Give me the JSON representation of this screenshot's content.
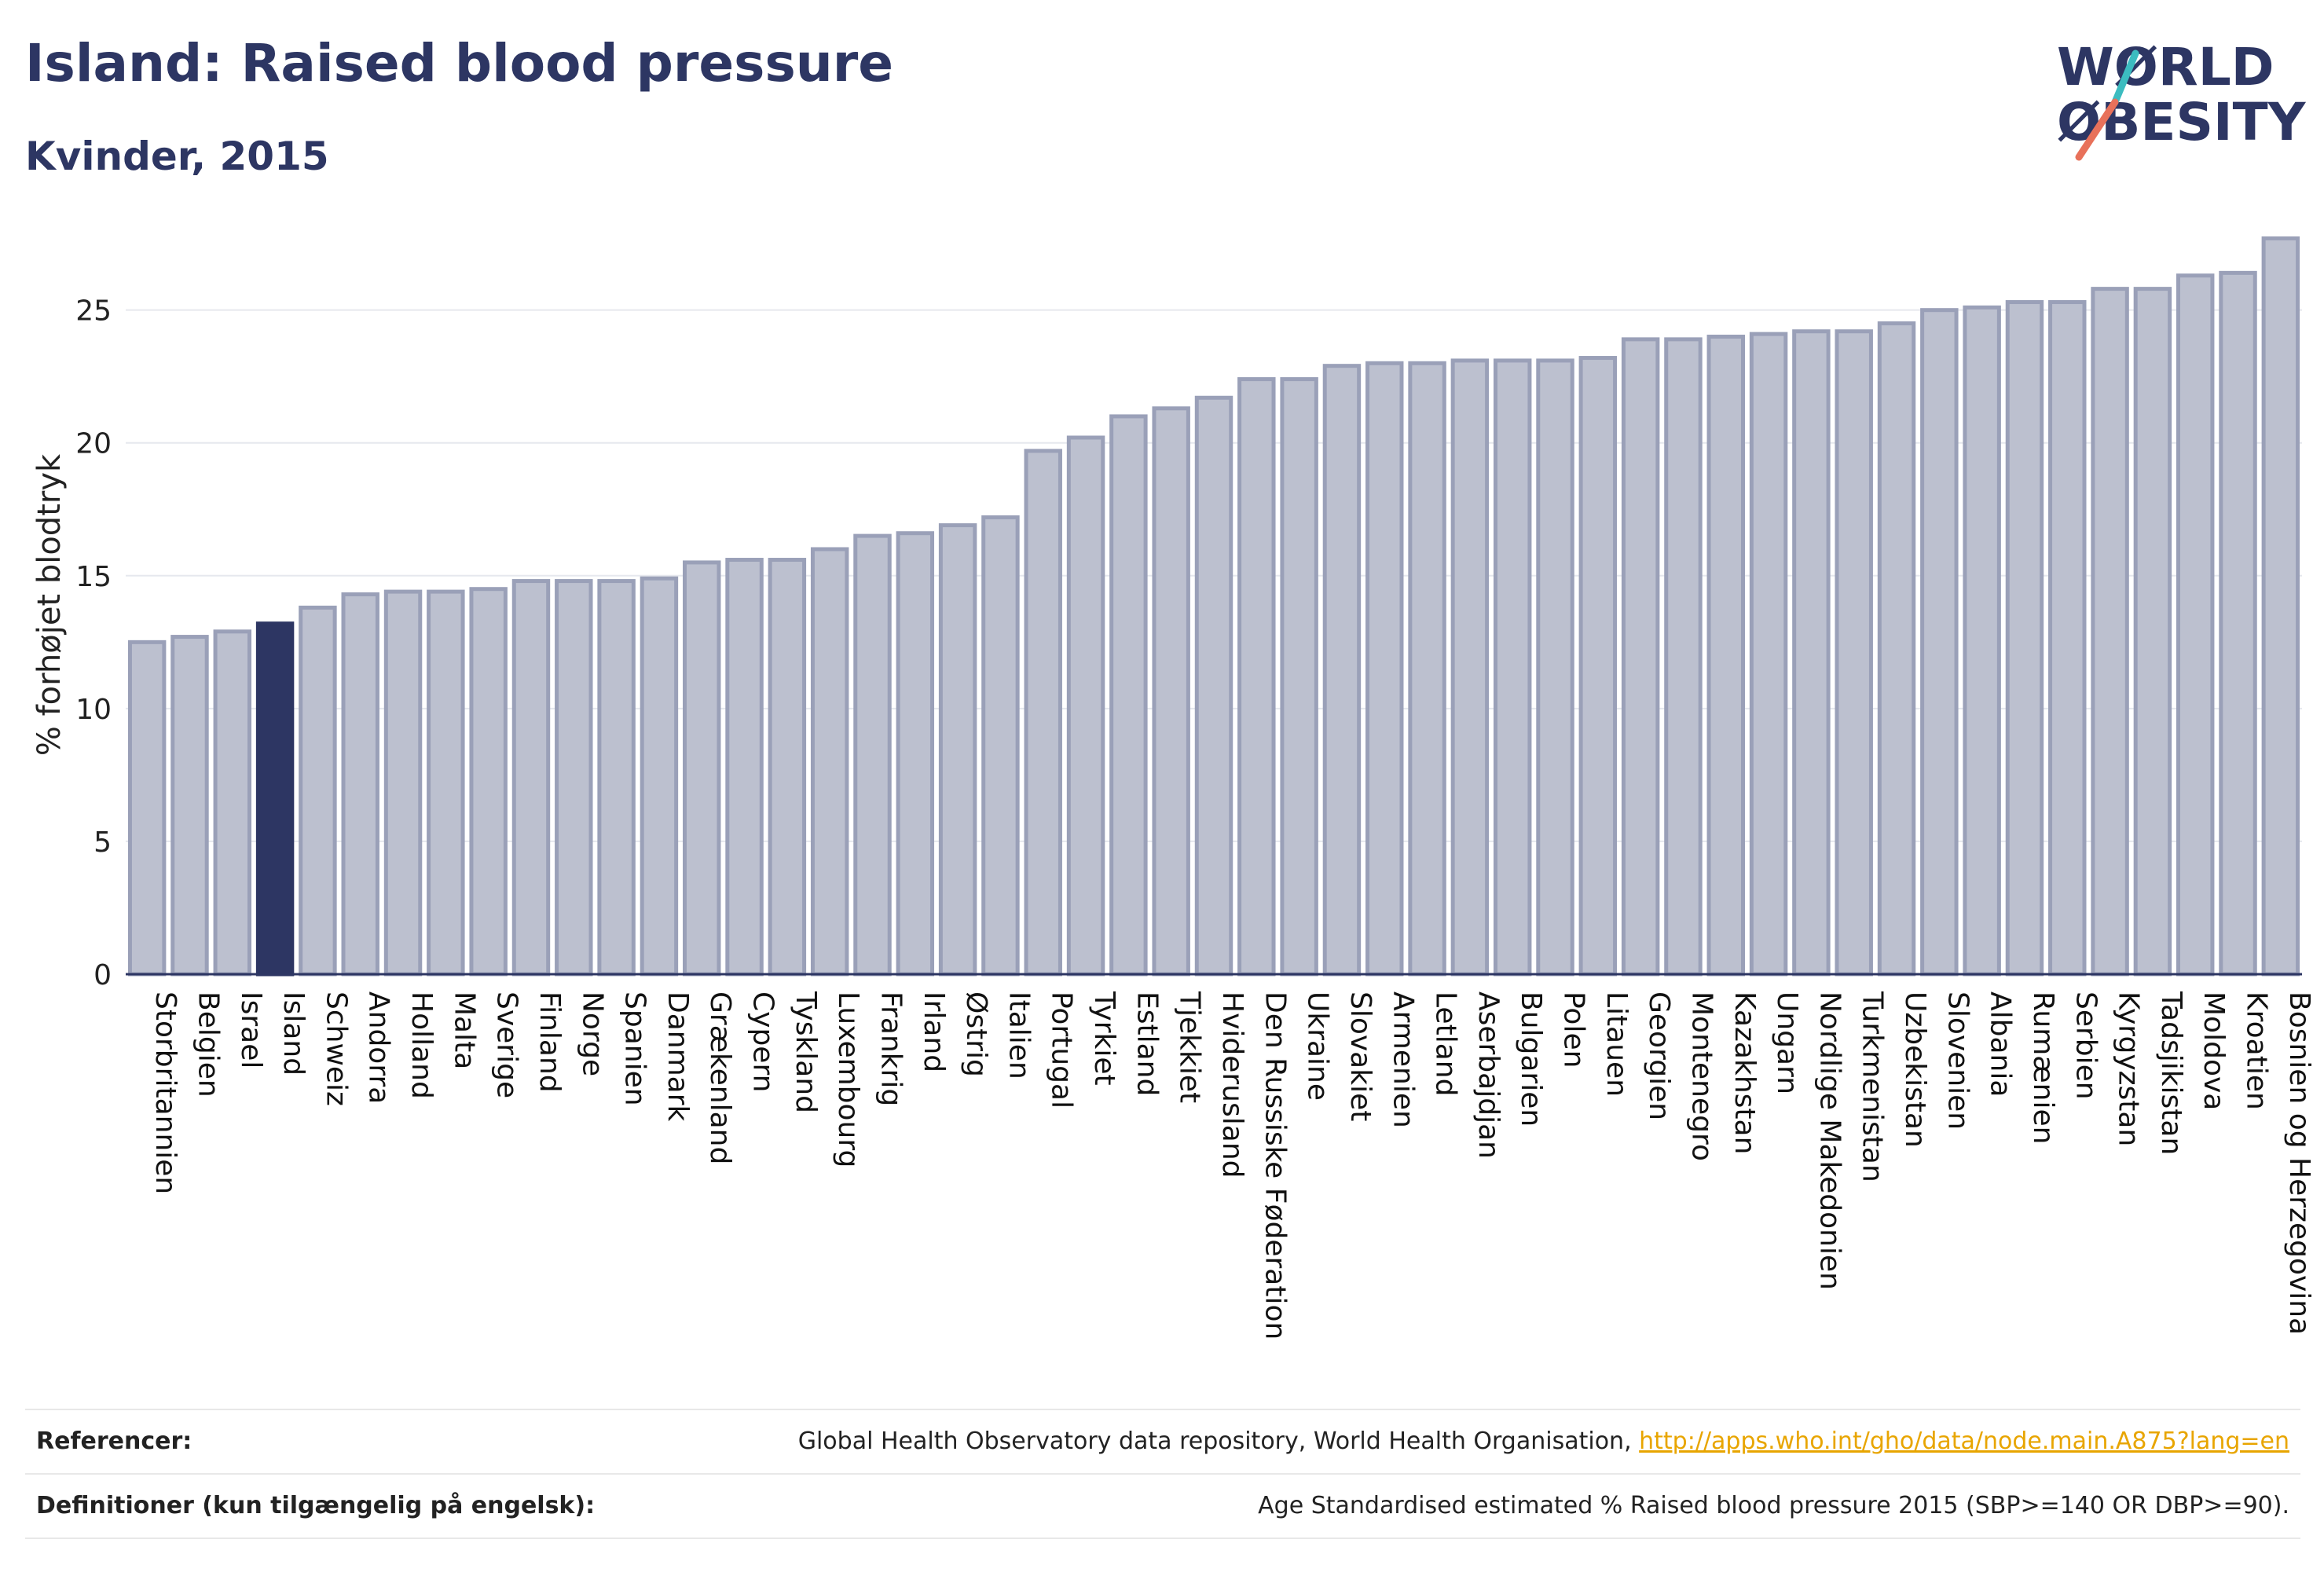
{
  "header": {
    "title": "Island: Raised blood pressure",
    "subtitle": "Kvinder, 2015"
  },
  "logo": {
    "line1": "WØRLD",
    "line2": "ØBESITY",
    "colors": {
      "text": "#2d3663",
      "accent_teal": "#3cbcc0",
      "accent_coral": "#e8715a"
    }
  },
  "colors": {
    "bar_fill": "#bcc0cf",
    "bar_stroke": "#9aa0b8",
    "highlight_fill": "#2d3663",
    "axis": "#2d3663",
    "grid": "#e6e8ee"
  },
  "chart_data": {
    "type": "bar",
    "title": "Island: Raised blood pressure",
    "subtitle": "Kvinder, 2015",
    "xlabel": "",
    "ylabel": "% forhøjet blodtryk",
    "ylim": [
      0,
      27.8
    ],
    "yticks": [
      0,
      5,
      10,
      15,
      20,
      25
    ],
    "grid": true,
    "highlight": "Island",
    "categories": [
      "Storbritannien",
      "Belgien",
      "Israel",
      "Island",
      "Schweiz",
      "Andorra",
      "Holland",
      "Malta",
      "Sverige",
      "Finland",
      "Norge",
      "Spanien",
      "Danmark",
      "Grækenland",
      "Cypern",
      "Tyskland",
      "Luxembourg",
      "Frankrig",
      "Irland",
      "Østrig",
      "Italien",
      "Portugal",
      "Tyrkiet",
      "Estland",
      "Tjekkiet",
      "Hviderusland",
      "Den Russiske Føderation",
      "Ukraine",
      "Slovakiet",
      "Armenien",
      "Letland",
      "Aserbajdjan",
      "Bulgarien",
      "Polen",
      "Litauen",
      "Georgien",
      "Montenegro",
      "Kazakhstan",
      "Ungarn",
      "Nordlige Makedonien",
      "Turkmenistan",
      "Uzbekistan",
      "Slovenien",
      "Albania",
      "Rumænien",
      "Serbien",
      "Kyrgyzstan",
      "Tadsjikistan",
      "Moldova",
      "Kroatien",
      "Bosnien og Herzegovina"
    ],
    "values": [
      12.5,
      12.7,
      12.9,
      13.2,
      13.8,
      14.3,
      14.4,
      14.4,
      14.5,
      14.8,
      14.8,
      14.8,
      14.9,
      15.5,
      15.6,
      15.6,
      16.0,
      16.5,
      16.6,
      16.9,
      17.2,
      19.7,
      20.2,
      21.0,
      21.3,
      21.7,
      22.4,
      22.4,
      22.9,
      23.0,
      23.0,
      23.1,
      23.1,
      23.1,
      23.2,
      23.9,
      23.9,
      24.0,
      24.1,
      24.2,
      24.2,
      24.5,
      25.0,
      25.1,
      25.3,
      25.3,
      25.8,
      25.8,
      26.3,
      26.4,
      27.7
    ]
  },
  "footer": {
    "references_label": "Referencer:",
    "references_text": "Global Health Observatory data repository, World Health Organisation, ",
    "references_link": "http://apps.who.int/gho/data/node.main.A875?lang=en",
    "definitions_label": "Definitioner (kun tilgængelig på engelsk):",
    "definitions_text": "Age Standardised estimated % Raised blood pressure 2015 (SBP>=140 OR DBP>=90)."
  }
}
